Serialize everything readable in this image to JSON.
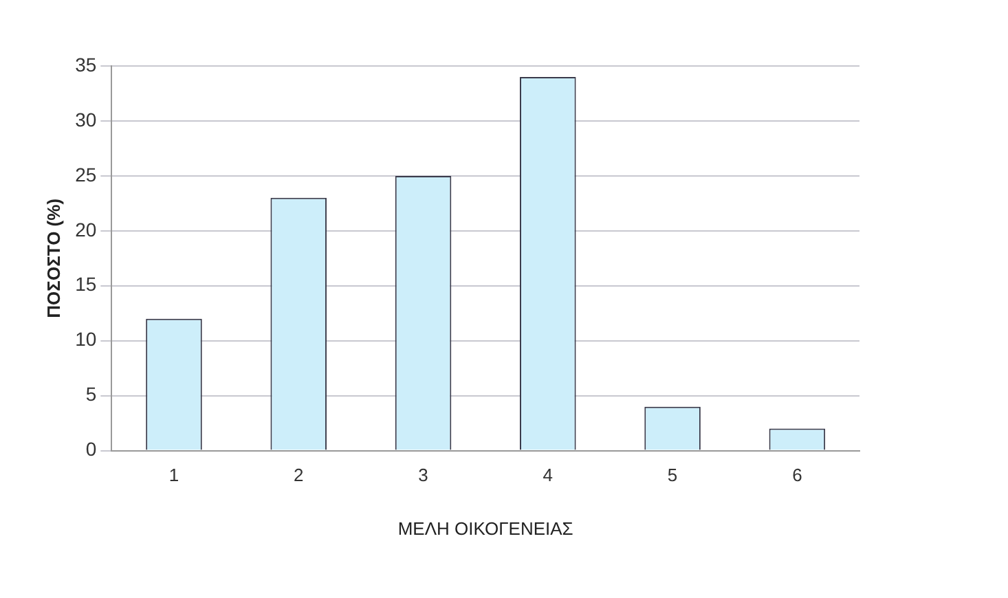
{
  "chart_data": {
    "type": "bar",
    "xlabel": "ΜΕΛΗ ΟΙΚΟΓΕΝΕΙΑΣ",
    "ylabel": "ΠΟΣΟΣΤΟ (%)",
    "categories": [
      "1",
      "2",
      "3",
      "4",
      "5",
      "6"
    ],
    "values": [
      12,
      23,
      25,
      34,
      4,
      2
    ],
    "color": "#cdeefa",
    "ylim": [
      0,
      35
    ],
    "yticks": [
      0,
      5,
      10,
      15,
      20,
      25,
      30,
      35
    ],
    "grid": "y"
  }
}
